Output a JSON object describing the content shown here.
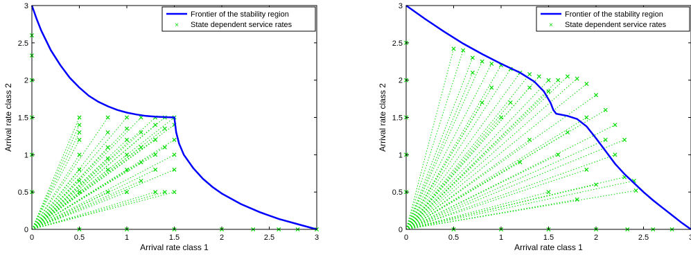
{
  "chart_data": [
    {
      "type": "scatter",
      "title": "",
      "xlabel": "Arrival rate class 1",
      "ylabel": "Arrival rate class 2",
      "xlim": [
        0,
        3
      ],
      "ylim": [
        0,
        3
      ],
      "xticks": [
        "0",
        "0.5",
        "1",
        "1.5",
        "2",
        "2.5",
        "3"
      ],
      "yticks": [
        "0",
        "0.5",
        "1",
        "1.5",
        "2",
        "2.5",
        "3"
      ],
      "grid": false,
      "legend_position": "top-right",
      "series": [
        {
          "name": "Frontier of the stability region",
          "kind": "line",
          "color": "#0000ff",
          "x": [
            0,
            0.05,
            0.1,
            0.2,
            0.3,
            0.4,
            0.5,
            0.6,
            0.7,
            0.8,
            0.9,
            1.0,
            1.1,
            1.2,
            1.3,
            1.4,
            1.5,
            1.52,
            1.55,
            1.6,
            1.7,
            1.8,
            1.9,
            2.0,
            2.2,
            2.4,
            2.6,
            2.8,
            3.0
          ],
          "y": [
            3.0,
            2.82,
            2.66,
            2.4,
            2.2,
            2.03,
            1.9,
            1.79,
            1.71,
            1.65,
            1.6,
            1.565,
            1.54,
            1.52,
            1.51,
            1.505,
            1.5,
            1.3,
            1.15,
            1.0,
            0.82,
            0.68,
            0.57,
            0.48,
            0.34,
            0.23,
            0.14,
            0.07,
            0.0
          ]
        },
        {
          "name": "State dependent service rates",
          "kind": "points",
          "color": "#00dd00",
          "x": [
            0.5,
            0.5,
            0.5,
            0.5,
            0.5,
            0.5,
            0.5,
            0.5,
            0.8,
            0.8,
            0.8,
            0.8,
            0.8,
            0.8,
            1.0,
            1.0,
            1.0,
            1.0,
            1.0,
            1.0,
            1.15,
            1.15,
            1.15,
            1.15,
            1.15,
            1.3,
            1.3,
            1.3,
            1.3,
            1.3,
            1.3,
            1.4,
            1.4,
            1.4,
            1.4,
            1.5,
            1.5,
            1.5,
            1.5,
            1.5,
            1.5,
            0,
            0,
            0,
            0,
            0,
            0,
            0.5,
            1.0,
            1.5,
            2.0,
            2.33,
            2.6,
            2.8,
            3.0
          ],
          "y": [
            1.5,
            1.4,
            1.3,
            1.2,
            1.0,
            0.8,
            0.65,
            0.5,
            1.5,
            1.3,
            1.1,
            0.95,
            0.8,
            0.5,
            1.5,
            1.35,
            1.2,
            1.0,
            0.8,
            0.5,
            1.5,
            1.3,
            1.1,
            0.9,
            0.65,
            1.5,
            1.4,
            1.2,
            1.0,
            0.8,
            0.5,
            1.5,
            1.35,
            1.1,
            0.5,
            1.5,
            1.4,
            1.2,
            1.0,
            0.8,
            0.5,
            0.5,
            1.0,
            1.5,
            2.0,
            2.33,
            2.6,
            0,
            0,
            0,
            0,
            0,
            0,
            0,
            0
          ]
        }
      ]
    },
    {
      "type": "scatter",
      "title": "",
      "xlabel": "Arrival rate class 1",
      "ylabel": "Arrival rate class 2",
      "xlim": [
        0,
        3
      ],
      "ylim": [
        0,
        3
      ],
      "xticks": [
        "0",
        "0.5",
        "1",
        "1.5",
        "2",
        "2.5",
        "3"
      ],
      "yticks": [
        "0",
        "0.5",
        "1",
        "1.5",
        "2",
        "2.5",
        "3"
      ],
      "grid": false,
      "legend_position": "top-right",
      "series": [
        {
          "name": "Frontier of the stability region",
          "kind": "line",
          "color": "#0000ff",
          "x": [
            0,
            0.2,
            0.4,
            0.6,
            0.8,
            1.0,
            1.2,
            1.35,
            1.45,
            1.52,
            1.55,
            1.58,
            1.7,
            1.8,
            1.9,
            2.0,
            2.1,
            2.2,
            2.3,
            2.4,
            2.5,
            2.6,
            2.7,
            2.8,
            2.9,
            3.0
          ],
          "y": [
            3.0,
            2.82,
            2.65,
            2.49,
            2.35,
            2.22,
            2.1,
            1.98,
            1.85,
            1.7,
            1.6,
            1.55,
            1.52,
            1.48,
            1.38,
            1.22,
            1.05,
            0.88,
            0.74,
            0.62,
            0.5,
            0.39,
            0.29,
            0.19,
            0.09,
            0.0
          ]
        },
        {
          "name": "State dependent service rates",
          "kind": "points",
          "color": "#00dd00",
          "x": [
            0.5,
            0.6,
            0.7,
            0.8,
            0.9,
            1.0,
            1.1,
            1.2,
            1.3,
            1.4,
            1.5,
            1.6,
            1.7,
            1.8,
            1.9,
            2.0,
            2.1,
            2.2,
            2.3,
            2.4,
            2.42,
            0.7,
            0.9,
            1.1,
            1.3,
            1.5,
            1.7,
            1.9,
            2.1,
            2.2,
            1.0,
            1.3,
            1.6,
            1.9,
            2.0,
            2.3,
            0.8,
            1.2,
            1.5,
            1.8,
            0,
            0,
            0,
            0,
            0,
            0.5,
            1.0,
            1.5,
            2.0,
            2.33,
            2.6,
            2.8
          ],
          "y": [
            2.42,
            2.4,
            2.3,
            2.25,
            2.22,
            2.2,
            2.15,
            2.1,
            2.08,
            2.05,
            2.0,
            2.0,
            2.05,
            2.02,
            1.95,
            1.8,
            1.6,
            1.4,
            1.2,
            0.65,
            0.52,
            2.1,
            1.9,
            1.7,
            1.9,
            1.85,
            1.3,
            1.5,
            1.2,
            1.0,
            1.5,
            1.2,
            1.0,
            0.8,
            0.6,
            0.7,
            1.7,
            0.9,
            0.5,
            0.4,
            0.5,
            1.0,
            1.5,
            2.0,
            2.5,
            0,
            0,
            0,
            0,
            0,
            0,
            0
          ]
        }
      ]
    }
  ]
}
